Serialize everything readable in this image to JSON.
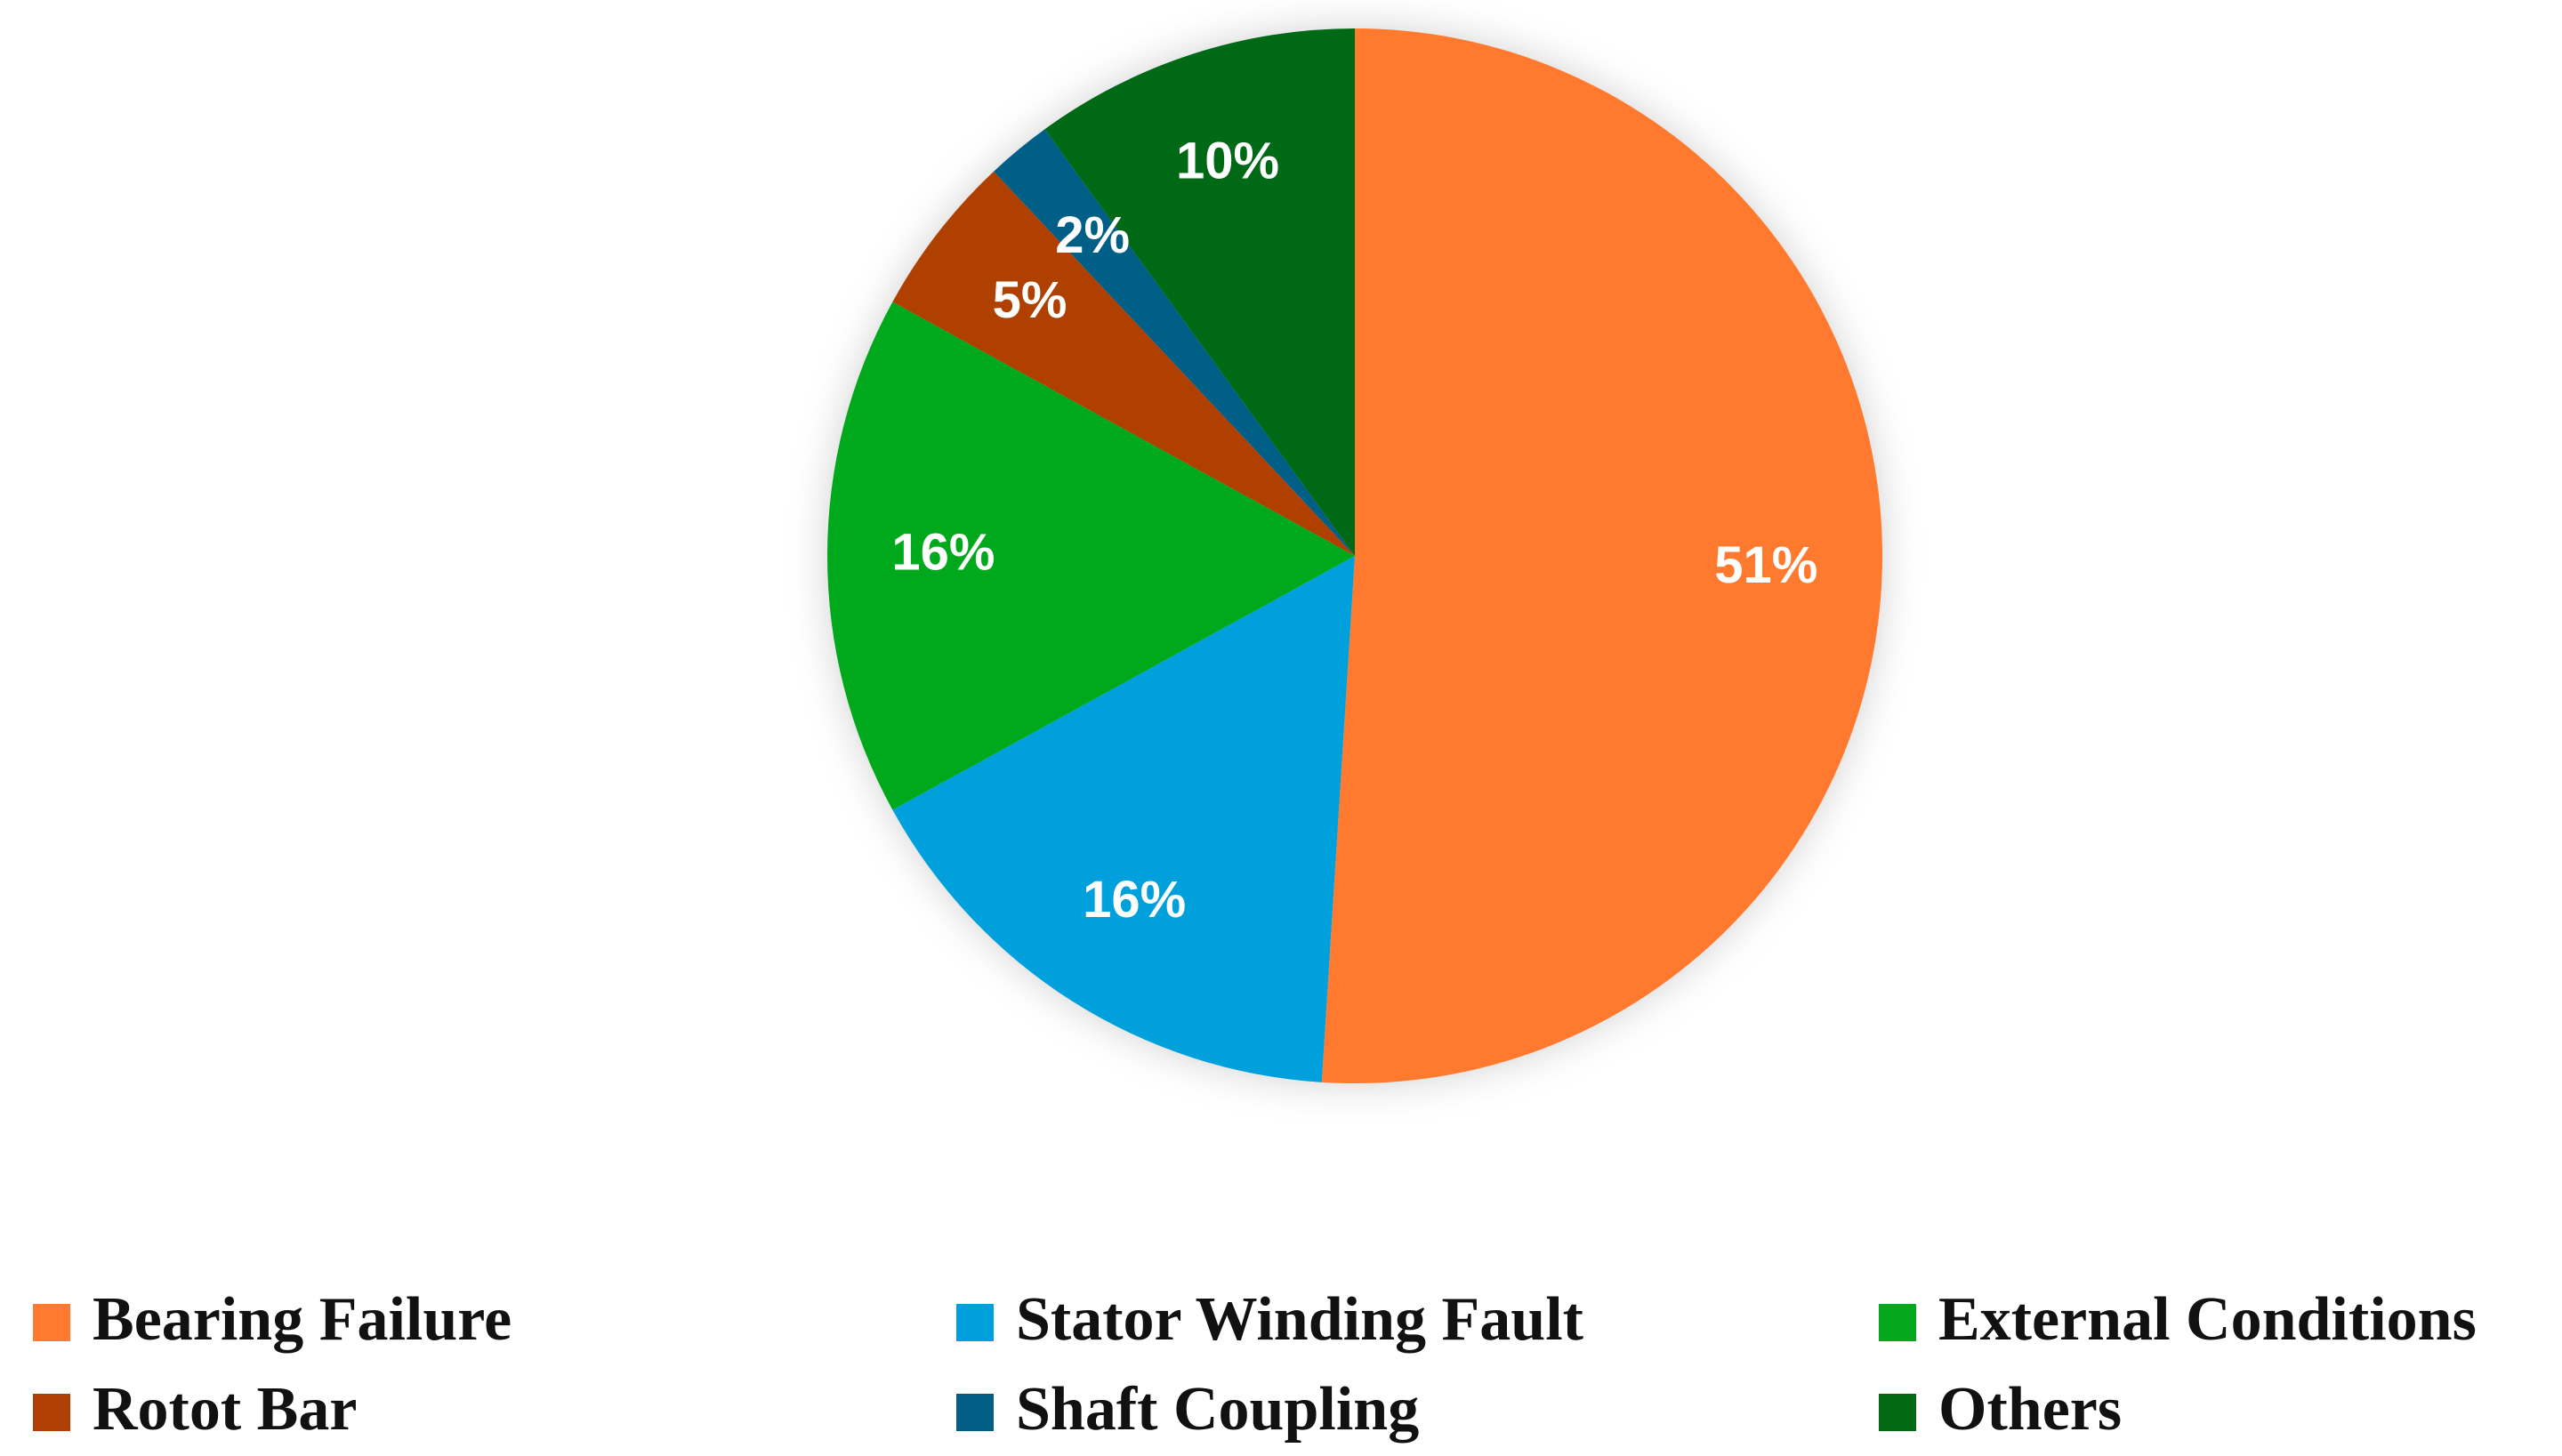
{
  "chart_data": {
    "type": "pie",
    "categories": [
      "Bearing Failure",
      "Stator Winding Fault",
      "External Conditions",
      "Rotot Bar",
      "Shaft Coupling",
      "Others"
    ],
    "values": [
      51,
      16,
      16,
      5,
      2,
      10
    ],
    "value_labels": [
      "51%",
      "16%",
      "16%",
      "5%",
      "2%",
      "10%"
    ],
    "colors": [
      "#ff7a2f",
      "#00a0dc",
      "#05a81c",
      "#b03f05",
      "#035e86",
      "#036912"
    ],
    "legend": "bottom"
  }
}
